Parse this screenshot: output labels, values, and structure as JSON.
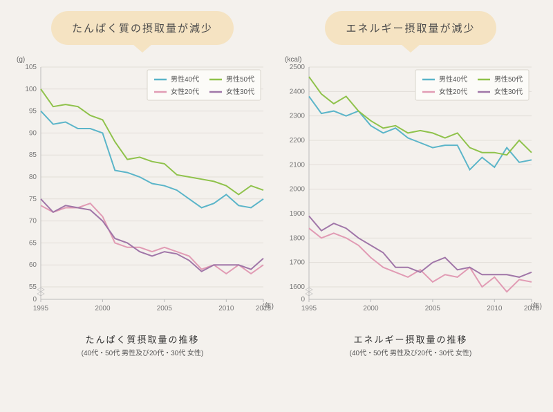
{
  "background_color": "#f4f1ed",
  "bubble_color": "#f5e3c2",
  "grid_color": "#e2ded8",
  "axis_color": "#bbb",
  "legend_border": "#d8d4cc",
  "x_years": [
    1995,
    1996,
    1997,
    1998,
    1999,
    2000,
    2001,
    2002,
    2003,
    2004,
    2005,
    2006,
    2007,
    2008,
    2009,
    2010,
    2011,
    2012,
    2013
  ],
  "x_ticks": [
    1995,
    2000,
    2005,
    2010,
    2013
  ],
  "x_axis_unit": "(年)",
  "series_meta": {
    "m40": {
      "label": "男性40代",
      "color": "#5bb5c9"
    },
    "m50": {
      "label": "男性50代",
      "color": "#8fc24b"
    },
    "f20": {
      "label": "女性20代",
      "color": "#e19bb4"
    },
    "f30": {
      "label": "女性30代",
      "color": "#a076a8"
    }
  },
  "left": {
    "bubble": "たんぱく質の摂取量が減少",
    "y_unit": "(g)",
    "ylim": [
      50,
      105
    ],
    "y_break_at": 55,
    "y_ticks": [
      55,
      60,
      65,
      70,
      75,
      80,
      85,
      90,
      95,
      100,
      105
    ],
    "caption_main": "たんぱく質摂取量の推移",
    "caption_sub": "(40代・50代 男性及び20代・30代 女性)",
    "series": {
      "m40": [
        95,
        92,
        92.5,
        91,
        91,
        90,
        81.5,
        81,
        80,
        78.5,
        78,
        77,
        75,
        73,
        74,
        76,
        73.5,
        73,
        75
      ],
      "m50": [
        100,
        96,
        96.5,
        96,
        94,
        93,
        88,
        84,
        84.5,
        83.5,
        83,
        80.5,
        80,
        79.5,
        79,
        78,
        76,
        78,
        77
      ],
      "f20": [
        73.5,
        72,
        73,
        73,
        74,
        71,
        65,
        64,
        64,
        63,
        64,
        63,
        62,
        59,
        60,
        58,
        60,
        58,
        60
      ],
      "f30": [
        75,
        72,
        73.5,
        73,
        72.5,
        70,
        66,
        65,
        63,
        62,
        63,
        62.5,
        61,
        58.5,
        60,
        60,
        60,
        59,
        61.5
      ]
    }
  },
  "right": {
    "bubble": "エネルギー摂取量が減少",
    "y_unit": "(kcal)",
    "ylim": [
      1500,
      2500
    ],
    "y_break_at": 1600,
    "y_ticks": [
      1600,
      1700,
      1800,
      1900,
      2000,
      2100,
      2200,
      2300,
      2400,
      2500
    ],
    "caption_main": "エネルギー摂取量の推移",
    "caption_sub": "(40代・50代 男性及び20代・30代 女性)",
    "series": {
      "m40": [
        2380,
        2310,
        2320,
        2300,
        2320,
        2260,
        2230,
        2250,
        2210,
        2190,
        2170,
        2180,
        2180,
        2080,
        2130,
        2090,
        2170,
        2110,
        2120
      ],
      "m50": [
        2460,
        2390,
        2350,
        2380,
        2320,
        2280,
        2250,
        2260,
        2230,
        2240,
        2230,
        2210,
        2230,
        2170,
        2150,
        2150,
        2140,
        2200,
        2150
      ],
      "f20": [
        1840,
        1800,
        1820,
        1800,
        1770,
        1720,
        1680,
        1660,
        1640,
        1670,
        1620,
        1650,
        1640,
        1680,
        1600,
        1640,
        1580,
        1630,
        1620
      ],
      "f30": [
        1890,
        1830,
        1860,
        1840,
        1800,
        1770,
        1740,
        1680,
        1680,
        1660,
        1700,
        1720,
        1670,
        1680,
        1650,
        1650,
        1650,
        1640,
        1660
      ]
    }
  }
}
